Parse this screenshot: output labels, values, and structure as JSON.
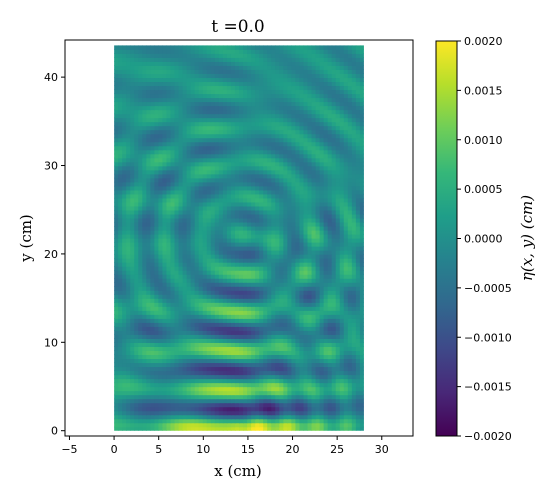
{
  "chart_data": {
    "type": "heatmap",
    "title": "t =0.0",
    "xlabel": "x (cm)",
    "ylabel": "y (cm)",
    "xlim": [
      -5.5,
      33.5
    ],
    "ylim": [
      -0.6,
      44.2
    ],
    "x_ticks": [
      -5,
      0,
      5,
      10,
      15,
      20,
      25,
      30
    ],
    "x_tick_labels": [
      "−5",
      "0",
      "5",
      "10",
      "15",
      "20",
      "25",
      "30"
    ],
    "y_ticks": [
      0,
      10,
      20,
      30,
      40
    ],
    "y_tick_labels": [
      "0",
      "10",
      "20",
      "30",
      "40"
    ],
    "field_extent": {
      "x": [
        0,
        28
      ],
      "y": [
        0,
        43.6
      ]
    },
    "wave_source": {
      "x": 14,
      "y": 0.5
    },
    "grid": false,
    "colorbar": {
      "label": "η(x, y) (cm)",
      "colormap": "viridis",
      "vmin": -0.002,
      "vmax": 0.002,
      "ticks": [
        0.002,
        0.0015,
        0.001,
        0.0005,
        0.0,
        -0.0005,
        -0.001,
        -0.0015,
        -0.002
      ],
      "tick_labels": [
        "0.0020",
        "0.0015",
        "0.0010",
        "0.0005",
        "0.0000",
        "−0.0005",
        "−0.0010",
        "−0.0015",
        "−0.0020"
      ],
      "stops": [
        "#440154",
        "#482878",
        "#3e4989",
        "#31688e",
        "#26828e",
        "#1f9e89",
        "#35b779",
        "#6ece58",
        "#b5de2b",
        "#fde725"
      ]
    }
  }
}
